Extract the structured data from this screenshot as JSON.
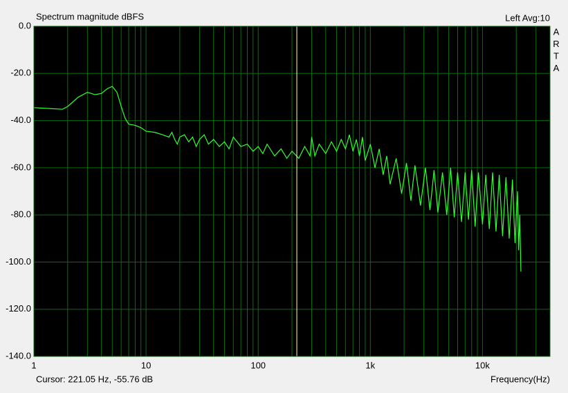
{
  "chart_data": {
    "type": "line",
    "title": "Spectrum magnitude dBFS",
    "channel_label": "Left  Avg:10",
    "side_label": [
      "A",
      "R",
      "T",
      "A"
    ],
    "x_label": "Frequency(Hz)",
    "cursor": {
      "label": "Cursor: 221.05 Hz, -55.76 dB",
      "x": 221.05,
      "color": "#ffffc8"
    },
    "log_x": true,
    "grid": true,
    "grid_color": "#0b6e0b",
    "background": "#000000",
    "xlim": [
      1,
      40000
    ],
    "xticks": [
      1,
      10,
      100,
      {
        "value": 1000,
        "label": "1k"
      },
      {
        "value": 10000,
        "label": "10k"
      }
    ],
    "ylim": [
      -140,
      0
    ],
    "yticks": [
      {
        "value": 0,
        "label": "0.0"
      },
      {
        "value": -20,
        "label": "-20.0"
      },
      {
        "value": -40,
        "label": "-40.0"
      },
      {
        "value": -60,
        "label": "-60.0"
      },
      {
        "value": -80,
        "label": "-80.0"
      },
      {
        "value": -100,
        "label": "-100.0"
      },
      {
        "value": -120,
        "label": "-120.0"
      },
      {
        "value": -140,
        "label": "-140.0"
      }
    ],
    "x": [
      1,
      1.5,
      1.8,
      2,
      2.5,
      3,
      3.5,
      4,
      4.5,
      5,
      5.5,
      6,
      6.5,
      7,
      8,
      9,
      10,
      12,
      14,
      16,
      17,
      18,
      19,
      20,
      22,
      24,
      26,
      28,
      30,
      33,
      36,
      40,
      45,
      50,
      55,
      60,
      70,
      80,
      90,
      100,
      110,
      120,
      140,
      160,
      180,
      200,
      230,
      260,
      290,
      300,
      320,
      350,
      400,
      450,
      500,
      550,
      600,
      650,
      700,
      750,
      800,
      850,
      900,
      1000,
      1100,
      1200,
      1300,
      1400,
      1500,
      1700,
      1900,
      2100,
      2300,
      2500,
      2800,
      3100,
      3400,
      3700,
      4000,
      4400,
      4800,
      5200,
      5600,
      6000,
      6500,
      7000,
      7500,
      8000,
      8600,
      9200,
      10000,
      10700,
      11500,
      12300,
      13200,
      14100,
      15100,
      16200,
      17300,
      18500,
      19500,
      20500,
      21000,
      21500,
      22000
    ],
    "series": [
      {
        "color": "#33ff33",
        "values": [
          -34.5,
          -35,
          -35.2,
          -34,
          -30,
          -28,
          -29,
          -28.5,
          -26.5,
          -25.5,
          -28,
          -34,
          -39,
          -41.5,
          -42,
          -43,
          -44.5,
          -45,
          -46,
          -47,
          -45,
          -48,
          -50,
          -47,
          -46,
          -49,
          -47,
          -51,
          -48,
          -46,
          -50,
          -48,
          -51,
          -49,
          -52,
          -47,
          -51,
          -50,
          -53,
          -51,
          -54,
          -50,
          -55,
          -52,
          -56,
          -53,
          -56,
          -51,
          -55,
          -47,
          -55,
          -50,
          -54,
          -49,
          -53,
          -48,
          -52,
          -46,
          -53,
          -48,
          -55,
          -47,
          -57,
          -50,
          -60,
          -52,
          -63,
          -55,
          -67,
          -56,
          -71,
          -58,
          -74,
          -59,
          -76,
          -60,
          -78,
          -61,
          -79,
          -62,
          -80,
          -60,
          -81,
          -62,
          -83,
          -62,
          -82,
          -61,
          -85,
          -62,
          -84,
          -63,
          -86,
          -62,
          -87,
          -63,
          -89,
          -64,
          -90,
          -65,
          -92,
          -70,
          -95,
          -80,
          -104
        ]
      }
    ]
  }
}
